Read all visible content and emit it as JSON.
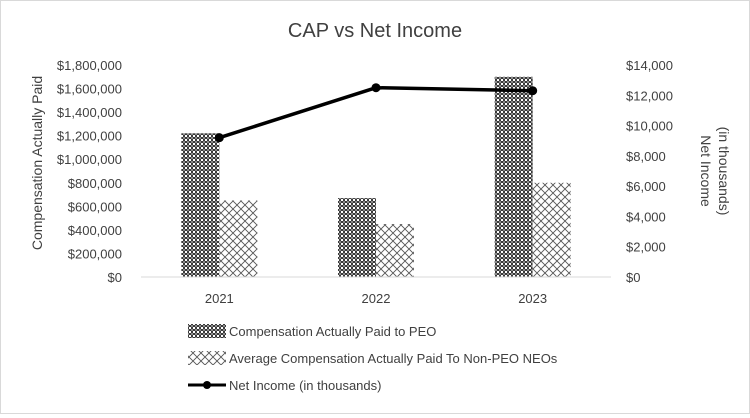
{
  "chart_data": {
    "type": "bar",
    "title": "CAP vs Net Income",
    "categories": [
      "2021",
      "2022",
      "2023"
    ],
    "ylabel": "Compensation Actually Paid",
    "y2label_line1": "Net Income",
    "y2label_line2": "(in thousands)",
    "ylim": [
      0,
      1800000
    ],
    "y2lim": [
      0,
      14000
    ],
    "yticks": [
      "$0",
      "$200,000",
      "$400,000",
      "$600,000",
      "$800,000",
      "$1,000,000",
      "$1,200,000",
      "$1,400,000",
      "$1,600,000",
      "$1,800,000"
    ],
    "y2ticks": [
      "$0",
      "$2,000",
      "$4,000",
      "$6,000",
      "$8,000",
      "$10,000",
      "$12,000",
      "$14,000"
    ],
    "series": [
      {
        "name": "Compensation Actually Paid to PEO",
        "type": "bar",
        "axis": "left",
        "pattern": "dense-check",
        "values": [
          1220000,
          670000,
          1700000
        ]
      },
      {
        "name": "Average Compensation Actually Paid To Non-PEO NEOs",
        "type": "bar",
        "axis": "left",
        "pattern": "cross-hatch",
        "values": [
          650000,
          450000,
          800000
        ]
      },
      {
        "name": "Net Income (in thousands)",
        "type": "line",
        "axis": "right",
        "color": "#000000",
        "values": [
          9200,
          12500,
          12300
        ]
      }
    ],
    "legend_position": "bottom",
    "grid": false
  }
}
